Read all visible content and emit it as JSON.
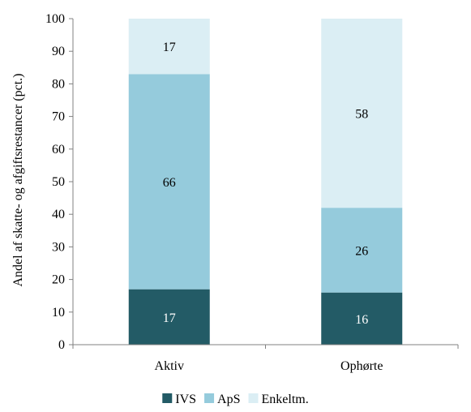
{
  "chart_data": {
    "type": "bar",
    "stacked": true,
    "categories": [
      "Aktiv",
      "Ophørte"
    ],
    "series": [
      {
        "name": "IVS",
        "values": [
          17,
          16
        ],
        "labels": [
          "17",
          "16"
        ],
        "color": "#235b66",
        "label_color": "#ffffff"
      },
      {
        "name": "ApS",
        "values": [
          66,
          26
        ],
        "labels": [
          "66",
          "26"
        ],
        "color": "#95cbdc",
        "label_color": "#000000"
      },
      {
        "name": "Enkeltm.",
        "values": [
          17,
          58
        ],
        "labels": [
          "17",
          "58"
        ],
        "color": "#dbeef4",
        "label_color": "#000000"
      }
    ],
    "xlabel": "",
    "ylabel": "Andel af skatte- og afgiftsrestancer (pct.)",
    "ylim": [
      0,
      100
    ],
    "yticks": [
      "0",
      "10",
      "20",
      "30",
      "40",
      "50",
      "60",
      "70",
      "80",
      "90",
      "100"
    ],
    "grid": false,
    "legend_position": "bottom"
  }
}
